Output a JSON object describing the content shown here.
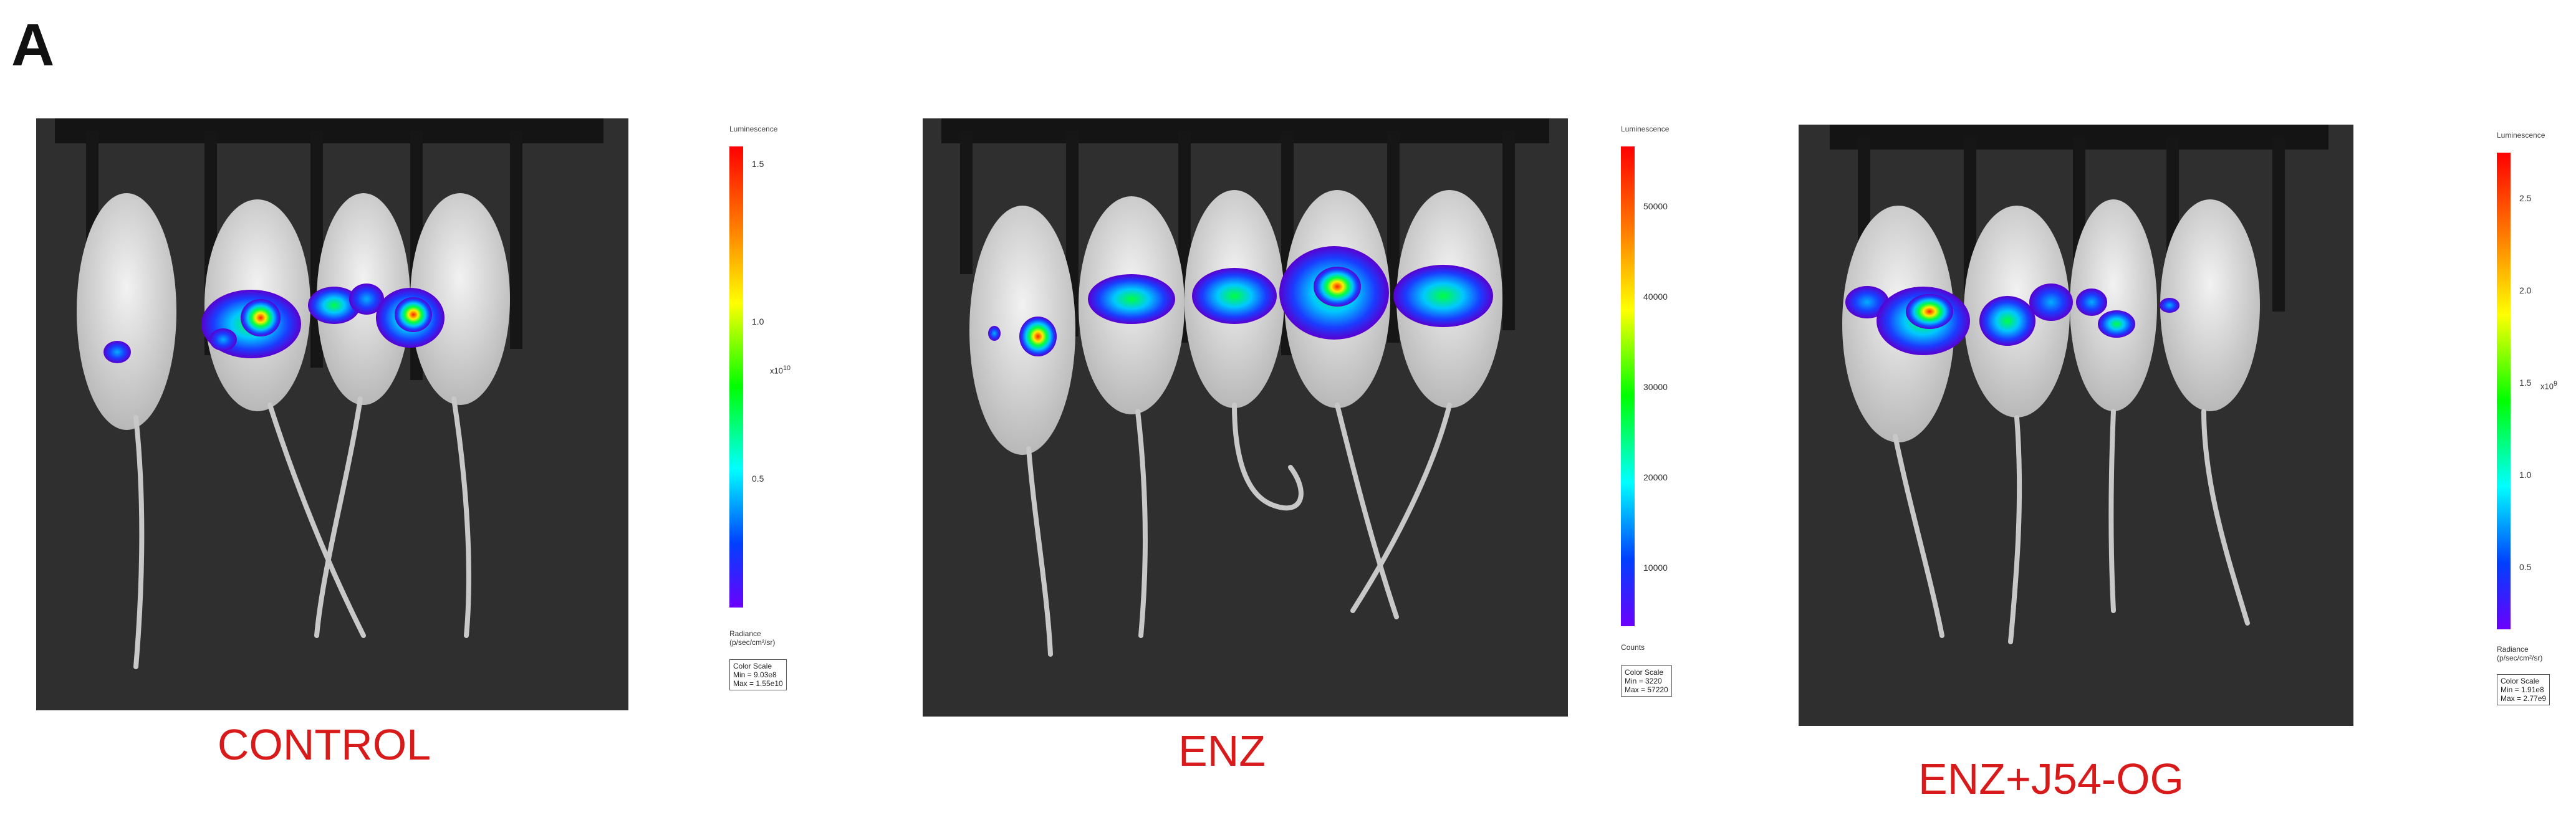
{
  "figure": {
    "panel_label": "A",
    "groups": [
      {
        "label": "CONTROL",
        "scale": {
          "title": "Luminescence",
          "ticks": [
            "1.5",
            "1.0",
            "0.5"
          ],
          "multiplier": "x10",
          "exponent": "10",
          "caption_line1": "Radiance",
          "caption_line2": "(p/sec/cm²/sr)",
          "box_title": "Color Scale",
          "box_min": "Min = 9.03e8",
          "box_max": "Max = 1.55e10"
        }
      },
      {
        "label": "ENZ",
        "scale": {
          "title": "Luminescence",
          "ticks": [
            "50000",
            "40000",
            "30000",
            "20000",
            "10000"
          ],
          "caption_line1": "Counts",
          "box_title": "Color Scale",
          "box_min": "Min = 3220",
          "box_max": "Max = 57220"
        }
      },
      {
        "label": "ENZ+J54-OG",
        "scale": {
          "title": "Luminescence",
          "ticks": [
            "2.5",
            "2.0",
            "1.5",
            "1.0",
            "0.5"
          ],
          "multiplier": "x10",
          "exponent": "9",
          "caption_line1": "Radiance",
          "caption_line2": "(p/sec/cm²/sr)",
          "box_title": "Color Scale",
          "box_min": "Min = 1.91e8",
          "box_max": "Max = 2.77e9"
        }
      }
    ],
    "colors": {
      "label_red": "#d91a1a",
      "photo_background": "#2f2f2f"
    }
  }
}
